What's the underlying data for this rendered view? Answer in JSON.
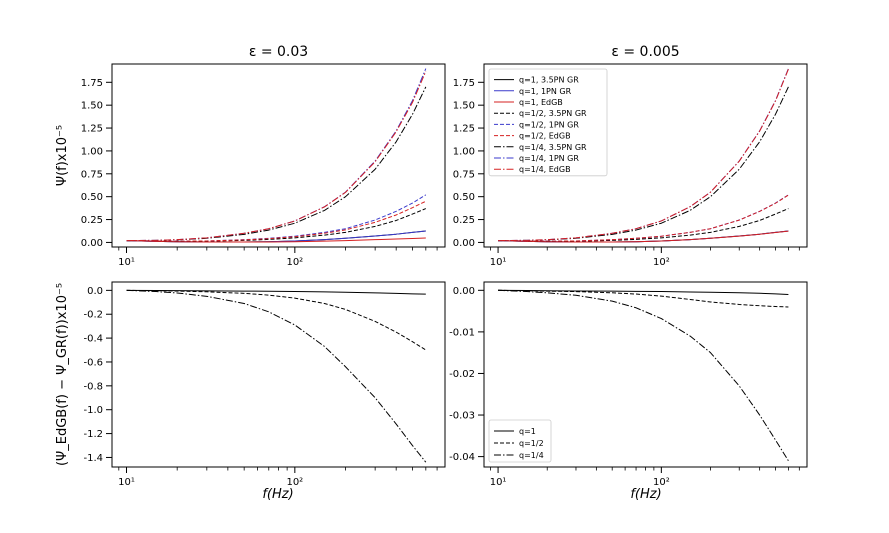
{
  "figure": {
    "x_label": "f(Hz)"
  },
  "chart_data": [
    {
      "id": "top-left",
      "type": "line",
      "title": "ε = 0.03",
      "ylabel": "Ψ(f)x10⁻⁵",
      "xscale": "log",
      "xlim": [
        8.2,
        780
      ],
      "ylim": [
        -0.05,
        1.95
      ],
      "xticks": [
        {
          "v": 10,
          "label": "10¹"
        },
        {
          "v": 100,
          "label": "10²"
        }
      ],
      "yticks": [
        "0.00",
        "0.25",
        "0.50",
        "0.75",
        "1.00",
        "1.25",
        "1.50",
        "1.75"
      ],
      "x": [
        10,
        15,
        20,
        30,
        50,
        70,
        100,
        150,
        200,
        300,
        400,
        500,
        600
      ],
      "series": [
        {
          "name": "q=1, 3.5PN GR",
          "color": "#000000",
          "dash": "",
          "values": [
            0.02,
            0.012,
            0.008,
            0.005,
            0.005,
            0.008,
            0.015,
            0.03,
            0.045,
            0.07,
            0.09,
            0.11,
            0.125
          ]
        },
        {
          "name": "q=1, 1PN GR",
          "color": "#3a3acc",
          "dash": "",
          "values": [
            0.02,
            0.012,
            0.008,
            0.005,
            0.005,
            0.008,
            0.015,
            0.03,
            0.045,
            0.07,
            0.09,
            0.11,
            0.125
          ]
        },
        {
          "name": "q=1, EdGB",
          "color": "#d62020",
          "dash": "",
          "values": [
            0.02,
            0.012,
            0.008,
            0.005,
            0.004,
            0.005,
            0.008,
            0.014,
            0.02,
            0.03,
            0.037,
            0.043,
            0.048
          ]
        },
        {
          "name": "q=1/2, 3.5PN GR",
          "color": "#000000",
          "dash": "4 2",
          "values": [
            0.02,
            0.015,
            0.012,
            0.013,
            0.022,
            0.033,
            0.05,
            0.08,
            0.11,
            0.175,
            0.24,
            0.31,
            0.37
          ]
        },
        {
          "name": "q=1/2, 1PN GR",
          "color": "#3a3acc",
          "dash": "4 2",
          "values": [
            0.02,
            0.016,
            0.014,
            0.016,
            0.03,
            0.045,
            0.068,
            0.11,
            0.15,
            0.245,
            0.34,
            0.43,
            0.52
          ]
        },
        {
          "name": "q=1/2, EdGB",
          "color": "#d62020",
          "dash": "4 2",
          "values": [
            0.02,
            0.016,
            0.014,
            0.016,
            0.028,
            0.041,
            0.062,
            0.1,
            0.137,
            0.22,
            0.3,
            0.38,
            0.45
          ]
        },
        {
          "name": "q=1/4, 3.5PN GR",
          "color": "#000000",
          "dash": "7 2 1.5 2",
          "values": [
            0.02,
            0.022,
            0.028,
            0.045,
            0.088,
            0.135,
            0.21,
            0.35,
            0.5,
            0.8,
            1.1,
            1.4,
            1.7
          ]
        },
        {
          "name": "q=1/4, 1PN GR",
          "color": "#3a3acc",
          "dash": "7 2 1.5 2",
          "values": [
            0.02,
            0.023,
            0.03,
            0.05,
            0.1,
            0.15,
            0.235,
            0.39,
            0.55,
            0.89,
            1.22,
            1.55,
            1.9
          ]
        },
        {
          "name": "q=1/4, EdGB",
          "color": "#d62020",
          "dash": "7 2 1.5 2",
          "values": [
            0.02,
            0.023,
            0.03,
            0.05,
            0.1,
            0.15,
            0.234,
            0.388,
            0.547,
            0.882,
            1.21,
            1.53,
            1.87
          ]
        }
      ]
    },
    {
      "id": "top-right",
      "type": "line",
      "title": "ε = 0.005",
      "ylabel": "",
      "xscale": "log",
      "xlim": [
        8.2,
        780
      ],
      "ylim": [
        -0.05,
        1.95
      ],
      "xticks": [
        {
          "v": 10,
          "label": "10¹"
        },
        {
          "v": 100,
          "label": "10²"
        }
      ],
      "yticks": [
        "0.00",
        "0.25",
        "0.50",
        "0.75",
        "1.00",
        "1.25",
        "1.50",
        "1.75"
      ],
      "legend": {
        "position": "upper-left"
      },
      "x": [
        10,
        15,
        20,
        30,
        50,
        70,
        100,
        150,
        200,
        300,
        400,
        500,
        600
      ],
      "series": [
        {
          "name": "q=1, 3.5PN GR",
          "color": "#000000",
          "dash": "",
          "values": [
            0.02,
            0.012,
            0.008,
            0.005,
            0.005,
            0.008,
            0.015,
            0.03,
            0.045,
            0.07,
            0.09,
            0.11,
            0.125
          ]
        },
        {
          "name": "q=1, 1PN GR",
          "color": "#3a3acc",
          "dash": "",
          "values": [
            0.02,
            0.012,
            0.008,
            0.005,
            0.005,
            0.008,
            0.015,
            0.03,
            0.045,
            0.07,
            0.09,
            0.11,
            0.125
          ]
        },
        {
          "name": "q=1, EdGB",
          "color": "#d62020",
          "dash": "",
          "values": [
            0.02,
            0.012,
            0.008,
            0.005,
            0.005,
            0.008,
            0.015,
            0.03,
            0.045,
            0.069,
            0.089,
            0.109,
            0.124
          ]
        },
        {
          "name": "q=1/2, 3.5PN GR",
          "color": "#000000",
          "dash": "4 2",
          "values": [
            0.02,
            0.015,
            0.012,
            0.013,
            0.022,
            0.033,
            0.05,
            0.08,
            0.11,
            0.175,
            0.24,
            0.31,
            0.37
          ]
        },
        {
          "name": "q=1/2, 1PN GR",
          "color": "#3a3acc",
          "dash": "4 2",
          "values": [
            0.02,
            0.016,
            0.014,
            0.016,
            0.03,
            0.045,
            0.068,
            0.11,
            0.15,
            0.245,
            0.34,
            0.43,
            0.52
          ]
        },
        {
          "name": "q=1/2, EdGB",
          "color": "#d62020",
          "dash": "4 2",
          "values": [
            0.02,
            0.016,
            0.014,
            0.016,
            0.03,
            0.045,
            0.068,
            0.11,
            0.15,
            0.244,
            0.339,
            0.428,
            0.517
          ]
        },
        {
          "name": "q=1/4, 3.5PN GR",
          "color": "#000000",
          "dash": "7 2 1.5 2",
          "values": [
            0.02,
            0.022,
            0.028,
            0.045,
            0.088,
            0.135,
            0.21,
            0.35,
            0.5,
            0.8,
            1.1,
            1.4,
            1.7
          ]
        },
        {
          "name": "q=1/4, 1PN GR",
          "color": "#3a3acc",
          "dash": "7 2 1.5 2",
          "values": [
            0.02,
            0.023,
            0.03,
            0.05,
            0.1,
            0.15,
            0.235,
            0.39,
            0.55,
            0.89,
            1.22,
            1.55,
            1.9
          ]
        },
        {
          "name": "q=1/4, EdGB",
          "color": "#d62020",
          "dash": "7 2 1.5 2",
          "values": [
            0.02,
            0.023,
            0.03,
            0.05,
            0.1,
            0.15,
            0.235,
            0.39,
            0.549,
            0.888,
            1.216,
            1.545,
            1.893
          ]
        }
      ]
    },
    {
      "id": "bottom-left",
      "type": "line",
      "title": "",
      "ylabel": "(Ψ_EdGB(f) − Ψ_GR(f))x10⁻⁵",
      "xscale": "log",
      "xlim": [
        8.2,
        780
      ],
      "ylim": [
        -1.48,
        0.07
      ],
      "xticks": [
        {
          "v": 10,
          "label": "10¹"
        },
        {
          "v": 100,
          "label": "10²"
        }
      ],
      "yticks": [
        "0.0",
        "-0.2",
        "-0.4",
        "-0.6",
        "-0.8",
        "-1.0",
        "-1.2",
        "-1.4"
      ],
      "x": [
        10,
        15,
        20,
        30,
        50,
        70,
        100,
        150,
        200,
        300,
        400,
        500,
        600
      ],
      "series": [
        {
          "name": "q=1",
          "color": "#000000",
          "dash": "",
          "values": [
            0,
            -0.0015,
            -0.0025,
            -0.004,
            -0.006,
            -0.008,
            -0.01,
            -0.013,
            -0.016,
            -0.021,
            -0.025,
            -0.029,
            -0.032
          ]
        },
        {
          "name": "q=1/2",
          "color": "#000000",
          "dash": "4 2",
          "values": [
            0,
            -0.003,
            -0.006,
            -0.012,
            -0.025,
            -0.04,
            -0.065,
            -0.11,
            -0.16,
            -0.26,
            -0.35,
            -0.43,
            -0.5
          ]
        },
        {
          "name": "q=1/4",
          "color": "#000000",
          "dash": "7 2 1.5 2",
          "values": [
            0,
            -0.01,
            -0.022,
            -0.05,
            -0.11,
            -0.18,
            -0.29,
            -0.47,
            -0.64,
            -0.9,
            -1.12,
            -1.3,
            -1.44
          ]
        }
      ]
    },
    {
      "id": "bottom-right",
      "type": "line",
      "title": "",
      "ylabel": "",
      "xscale": "log",
      "xlim": [
        8.2,
        780
      ],
      "ylim": [
        -0.0425,
        0.002
      ],
      "xticks": [
        {
          "v": 10,
          "label": "10¹"
        },
        {
          "v": 100,
          "label": "10²"
        }
      ],
      "yticks": [
        "0.00",
        "-0.01",
        "-0.02",
        "-0.03",
        "-0.04"
      ],
      "legend": {
        "position": "lower-left"
      },
      "x": [
        10,
        15,
        20,
        30,
        50,
        70,
        100,
        150,
        200,
        300,
        400,
        500,
        600
      ],
      "series": [
        {
          "name": "q=1",
          "color": "#000000",
          "dash": "",
          "values": [
            0,
            -5e-05,
            -0.0001,
            -0.00015,
            -0.0002,
            -0.00025,
            -0.0003,
            -0.0004,
            -0.00045,
            -0.0006,
            -0.0007,
            -0.00085,
            -0.001
          ]
        },
        {
          "name": "q=1/2",
          "color": "#000000",
          "dash": "4 2",
          "values": [
            0,
            -0.0001,
            -0.0002,
            -0.0003,
            -0.0006,
            -0.0009,
            -0.0014,
            -0.0022,
            -0.0028,
            -0.0034,
            -0.0037,
            -0.0039,
            -0.004
          ]
        },
        {
          "name": "q=1/4",
          "color": "#000000",
          "dash": "7 2 1.5 2",
          "values": [
            0,
            -0.0003,
            -0.0006,
            -0.0012,
            -0.0026,
            -0.0042,
            -0.0068,
            -0.011,
            -0.015,
            -0.023,
            -0.03,
            -0.036,
            -0.041
          ]
        }
      ]
    }
  ]
}
